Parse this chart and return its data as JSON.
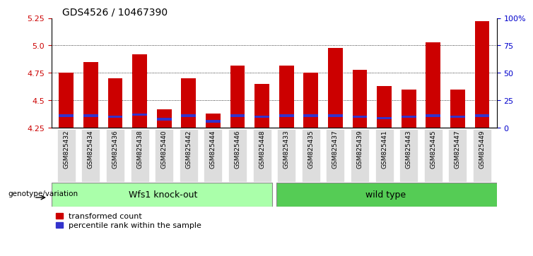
{
  "title": "GDS4526 / 10467390",
  "samples": [
    "GSM825432",
    "GSM825434",
    "GSM825436",
    "GSM825438",
    "GSM825440",
    "GSM825442",
    "GSM825444",
    "GSM825446",
    "GSM825448",
    "GSM825433",
    "GSM825435",
    "GSM825437",
    "GSM825439",
    "GSM825441",
    "GSM825443",
    "GSM825445",
    "GSM825447",
    "GSM825449"
  ],
  "red_values": [
    4.75,
    4.85,
    4.7,
    4.92,
    4.42,
    4.7,
    4.38,
    4.82,
    4.65,
    4.82,
    4.75,
    4.98,
    4.78,
    4.63,
    4.6,
    5.03,
    4.6,
    5.22
  ],
  "blue_values": [
    4.36,
    4.36,
    4.35,
    4.37,
    4.33,
    4.36,
    4.31,
    4.36,
    4.35,
    4.36,
    4.36,
    4.36,
    4.35,
    4.34,
    4.35,
    4.36,
    4.35,
    4.36
  ],
  "ymin": 4.25,
  "ymax": 5.25,
  "yticks": [
    4.25,
    4.5,
    4.75,
    5.0,
    5.25
  ],
  "right_yticks": [
    0,
    25,
    50,
    75,
    100
  ],
  "right_yticklabels": [
    "0",
    "25",
    "50",
    "75",
    "100%"
  ],
  "bar_color": "#cc0000",
  "blue_color": "#3333cc",
  "group1_label": "Wfs1 knock-out",
  "group2_label": "wild type",
  "group1_count": 9,
  "group2_count": 9,
  "group1_bg": "#aaffaa",
  "group2_bg": "#55cc55",
  "xlabel_left": "genotype/variation",
  "legend_red": "transformed count",
  "legend_blue": "percentile rank within the sample",
  "title_fontsize": 10,
  "axis_label_color_red": "#cc0000",
  "axis_label_color_blue": "#0000cc",
  "tick_bg_color": "#dddddd",
  "bar_width": 0.6
}
